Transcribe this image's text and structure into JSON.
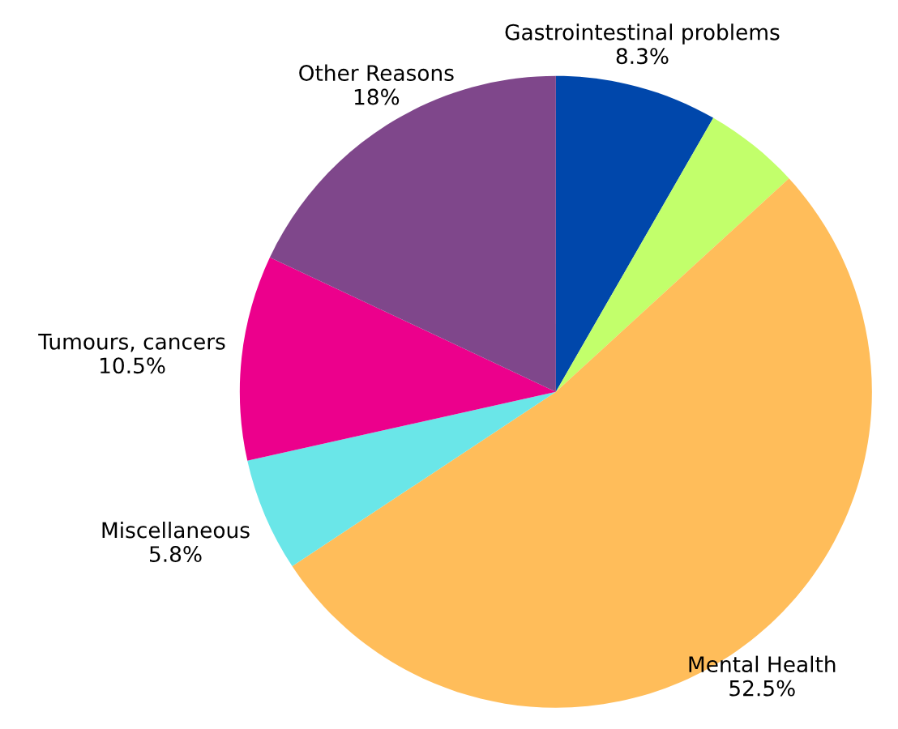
{
  "chart_data": {
    "type": "pie",
    "categories": [
      "Gastrointestinal problems",
      null,
      "Mental Health",
      "Miscellaneous",
      "Tumours, cancers",
      "Other Reasons"
    ],
    "values": [
      8.3,
      4.9,
      52.5,
      5.8,
      10.5,
      18
    ],
    "colors": [
      "#0047ab",
      "#c2ff6b",
      "#ffbd5a",
      "#6ae6e8",
      "#ec008c",
      "#7f478b"
    ],
    "value_labels": [
      "8.3%",
      null,
      "52.5%",
      "5.8%",
      "10.5%",
      "18%"
    ]
  }
}
